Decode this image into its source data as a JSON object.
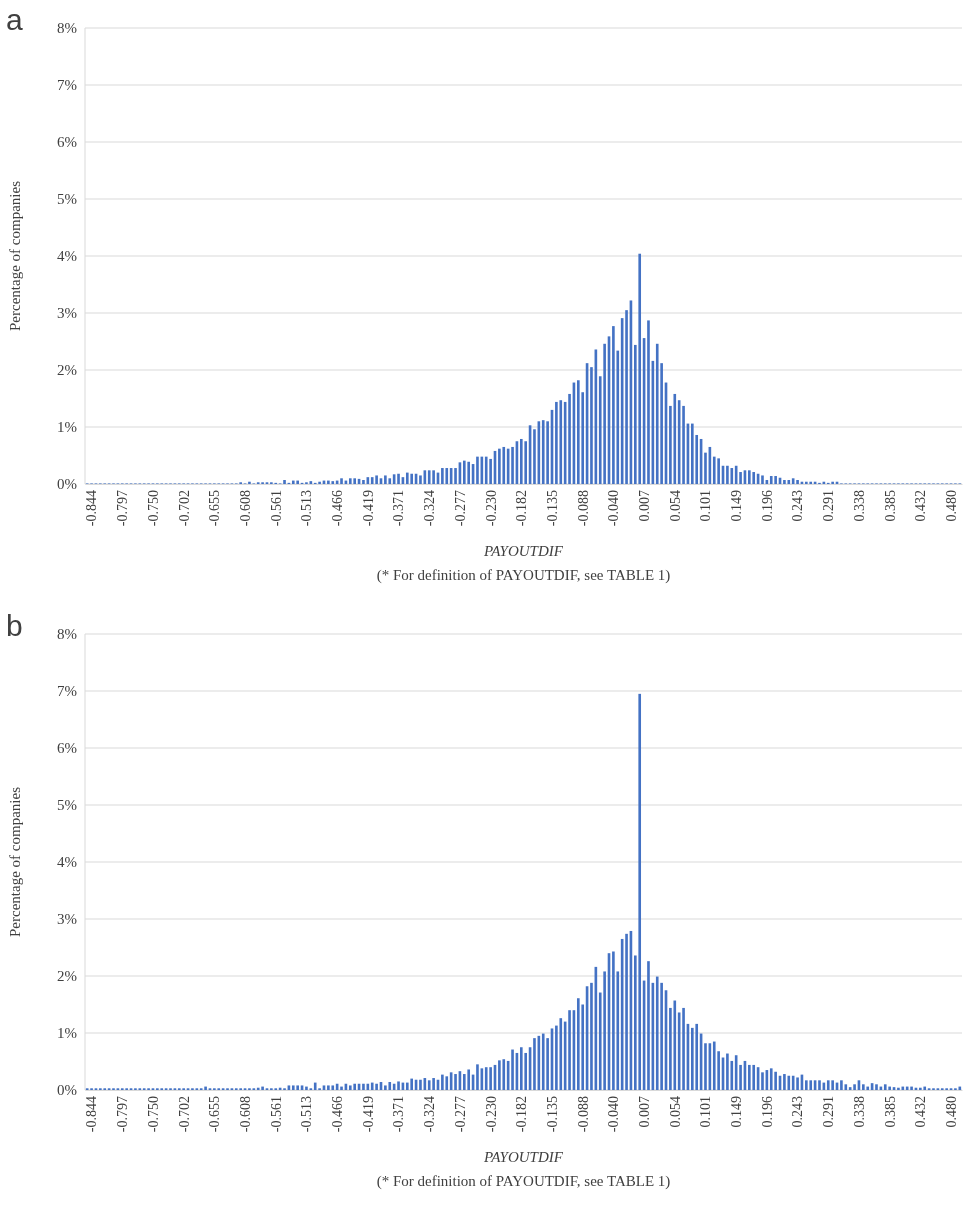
{
  "chart_data": [
    {
      "type": "bar",
      "title": "a",
      "xlabel": "PAYOUTDIF",
      "ylabel": "Percentage of companies",
      "annotations": [
        "(* For definition of PAYOUTDIF, see TABLE 1)"
      ],
      "color": "#4472c4",
      "grid": "y",
      "ylim": [
        0,
        8
      ],
      "yticks": [
        {
          "value": 0,
          "label": "0%"
        },
        {
          "value": 1,
          "label": "1%"
        },
        {
          "value": 2,
          "label": "2%"
        },
        {
          "value": 3,
          "label": "3%"
        },
        {
          "value": 4,
          "label": "4%"
        },
        {
          "value": 5,
          "label": "5%"
        },
        {
          "value": 6,
          "label": "6%"
        },
        {
          "value": 7,
          "label": "7%"
        },
        {
          "value": 8,
          "label": "8%"
        }
      ],
      "categories": [
        null,
        "-0.844",
        null,
        null,
        null,
        null,
        null,
        null,
        "-0.797",
        null,
        null,
        null,
        null,
        null,
        null,
        "-0.750",
        null,
        null,
        null,
        null,
        null,
        null,
        "-0.702",
        null,
        null,
        null,
        null,
        null,
        null,
        "-0.655",
        null,
        null,
        null,
        null,
        null,
        null,
        "-0.608",
        null,
        null,
        null,
        null,
        null,
        null,
        "-0.561",
        null,
        null,
        null,
        null,
        null,
        null,
        "-0.513",
        null,
        null,
        null,
        null,
        null,
        null,
        "-0.466",
        null,
        null,
        null,
        null,
        null,
        null,
        "-0.419",
        null,
        null,
        null,
        null,
        null,
        null,
        "-0.371",
        null,
        null,
        null,
        null,
        null,
        null,
        "-0.324",
        null,
        null,
        null,
        null,
        null,
        null,
        "-0.277",
        null,
        null,
        null,
        null,
        null,
        null,
        "-0.230",
        null,
        null,
        null,
        null,
        null,
        null,
        "-0.182",
        null,
        null,
        null,
        null,
        null,
        null,
        "-0.135",
        null,
        null,
        null,
        null,
        null,
        null,
        "-0.088",
        null,
        null,
        null,
        null,
        null,
        null,
        "-0.040",
        null,
        null,
        null,
        null,
        null,
        null,
        "0.007",
        null,
        null,
        null,
        null,
        null,
        null,
        "0.054",
        null,
        null,
        null,
        null,
        null,
        null,
        "0.101",
        null,
        null,
        null,
        null,
        null,
        null,
        "0.149",
        null,
        null,
        null,
        null,
        null,
        null,
        "0.196",
        null,
        null,
        null,
        null,
        null,
        null,
        "0.243",
        null,
        null,
        null,
        null,
        null,
        null,
        "0.291",
        null,
        null,
        null,
        null,
        null,
        null,
        "0.338",
        null,
        null,
        null,
        null,
        null,
        null,
        "0.385",
        null,
        null,
        null,
        null,
        null,
        null,
        "0.432",
        null,
        null,
        null,
        null,
        null,
        null,
        "0.480",
        null,
        null
      ],
      "values": [
        0.01,
        0.01,
        0.01,
        0.01,
        0.01,
        0.01,
        0.01,
        0.01,
        0.01,
        0.01,
        0.01,
        0.01,
        0.01,
        0.01,
        0.01,
        0.01,
        0.01,
        0.01,
        0.01,
        0.01,
        0.01,
        0.01,
        0.01,
        0.01,
        0.01,
        0.01,
        0.01,
        0.01,
        0.01,
        0.01,
        0.01,
        0.01,
        0.01,
        0.01,
        0.01,
        0.03,
        0.01,
        0.04,
        0.01,
        0.03,
        0.03,
        0.03,
        0.03,
        0.02,
        0.01,
        0.07,
        0.02,
        0.06,
        0.06,
        0.02,
        0.03,
        0.05,
        0.02,
        0.04,
        0.06,
        0.06,
        0.05,
        0.06,
        0.1,
        0.06,
        0.1,
        0.1,
        0.09,
        0.07,
        0.12,
        0.12,
        0.15,
        0.1,
        0.15,
        0.1,
        0.17,
        0.18,
        0.12,
        0.2,
        0.18,
        0.18,
        0.15,
        0.24,
        0.24,
        0.24,
        0.2,
        0.28,
        0.28,
        0.28,
        0.28,
        0.38,
        0.41,
        0.39,
        0.35,
        0.48,
        0.48,
        0.48,
        0.44,
        0.58,
        0.62,
        0.65,
        0.62,
        0.65,
        0.75,
        0.79,
        0.75,
        1.03,
        0.96,
        1.1,
        1.12,
        1.1,
        1.3,
        1.44,
        1.47,
        1.44,
        1.58,
        1.78,
        1.82,
        1.61,
        2.12,
        2.05,
        2.36,
        1.89,
        2.46,
        2.59,
        2.77,
        2.34,
        2.91,
        3.05,
        3.22,
        2.44,
        4.04,
        2.56,
        2.87,
        2.16,
        2.46,
        2.12,
        1.78,
        1.37,
        1.58,
        1.47,
        1.37,
        1.06,
        1.06,
        0.86,
        0.79,
        0.55,
        0.65,
        0.48,
        0.45,
        0.32,
        0.32,
        0.28,
        0.32,
        0.21,
        0.24,
        0.24,
        0.21,
        0.18,
        0.15,
        0.07,
        0.14,
        0.14,
        0.11,
        0.07,
        0.07,
        0.1,
        0.07,
        0.04,
        0.04,
        0.04,
        0.04,
        0.02,
        0.04,
        0.02,
        0.04,
        0.04,
        0.01,
        0.01,
        0.01,
        0.01,
        0.01,
        0.01,
        0.01,
        0.01,
        0.01,
        0.01,
        0.01,
        0.01,
        0.01,
        0.01,
        0.01,
        0.01,
        0.01,
        0.01,
        0.01,
        0.01,
        0.01,
        0.01,
        0.01,
        0.01,
        0.01,
        0.01,
        0.01,
        0.01
      ]
    },
    {
      "type": "bar",
      "title": "b",
      "xlabel": "PAYOUTDIF",
      "ylabel": "Percentage of companies",
      "annotations": [
        "(* For definition of PAYOUTDIF, see TABLE 1)"
      ],
      "color": "#4472c4",
      "grid": "y",
      "ylim": [
        0,
        8
      ],
      "yticks": [
        {
          "value": 0,
          "label": "0%"
        },
        {
          "value": 1,
          "label": "1%"
        },
        {
          "value": 2,
          "label": "2%"
        },
        {
          "value": 3,
          "label": "3%"
        },
        {
          "value": 4,
          "label": "4%"
        },
        {
          "value": 5,
          "label": "5%"
        },
        {
          "value": 6,
          "label": "6%"
        },
        {
          "value": 7,
          "label": "7%"
        },
        {
          "value": 8,
          "label": "8%"
        }
      ],
      "categories": [
        null,
        "-0.844",
        null,
        null,
        null,
        null,
        null,
        null,
        "-0.797",
        null,
        null,
        null,
        null,
        null,
        null,
        "-0.750",
        null,
        null,
        null,
        null,
        null,
        null,
        "-0.702",
        null,
        null,
        null,
        null,
        null,
        null,
        "-0.655",
        null,
        null,
        null,
        null,
        null,
        null,
        "-0.608",
        null,
        null,
        null,
        null,
        null,
        null,
        "-0.561",
        null,
        null,
        null,
        null,
        null,
        null,
        "-0.513",
        null,
        null,
        null,
        null,
        null,
        null,
        "-0.466",
        null,
        null,
        null,
        null,
        null,
        null,
        "-0.419",
        null,
        null,
        null,
        null,
        null,
        null,
        "-0.371",
        null,
        null,
        null,
        null,
        null,
        null,
        "-0.324",
        null,
        null,
        null,
        null,
        null,
        null,
        "-0.277",
        null,
        null,
        null,
        null,
        null,
        null,
        "-0.230",
        null,
        null,
        null,
        null,
        null,
        null,
        "-0.182",
        null,
        null,
        null,
        null,
        null,
        null,
        "-0.135",
        null,
        null,
        null,
        null,
        null,
        null,
        "-0.088",
        null,
        null,
        null,
        null,
        null,
        null,
        "-0.040",
        null,
        null,
        null,
        null,
        null,
        null,
        "0.007",
        null,
        null,
        null,
        null,
        null,
        null,
        "0.054",
        null,
        null,
        null,
        null,
        null,
        null,
        "0.101",
        null,
        null,
        null,
        null,
        null,
        null,
        "0.149",
        null,
        null,
        null,
        null,
        null,
        null,
        "0.196",
        null,
        null,
        null,
        null,
        null,
        null,
        "0.243",
        null,
        null,
        null,
        null,
        null,
        null,
        "0.291",
        null,
        null,
        null,
        null,
        null,
        null,
        "0.338",
        null,
        null,
        null,
        null,
        null,
        null,
        "0.385",
        null,
        null,
        null,
        null,
        null,
        null,
        "0.432",
        null,
        null,
        null,
        null,
        null,
        null,
        "0.480",
        null,
        null
      ],
      "values": [
        0.03,
        0.03,
        0.03,
        0.03,
        0.03,
        0.03,
        0.03,
        0.03,
        0.03,
        0.03,
        0.03,
        0.03,
        0.03,
        0.03,
        0.03,
        0.03,
        0.03,
        0.03,
        0.03,
        0.03,
        0.03,
        0.03,
        0.03,
        0.03,
        0.03,
        0.03,
        0.03,
        0.06,
        0.03,
        0.03,
        0.03,
        0.03,
        0.03,
        0.03,
        0.03,
        0.03,
        0.03,
        0.03,
        0.03,
        0.04,
        0.06,
        0.03,
        0.03,
        0.03,
        0.04,
        0.03,
        0.08,
        0.08,
        0.08,
        0.08,
        0.06,
        0.03,
        0.13,
        0.03,
        0.08,
        0.08,
        0.08,
        0.11,
        0.06,
        0.11,
        0.08,
        0.11,
        0.11,
        0.11,
        0.11,
        0.13,
        0.11,
        0.14,
        0.08,
        0.14,
        0.11,
        0.15,
        0.13,
        0.13,
        0.2,
        0.18,
        0.18,
        0.21,
        0.17,
        0.21,
        0.18,
        0.27,
        0.24,
        0.31,
        0.28,
        0.33,
        0.28,
        0.36,
        0.27,
        0.45,
        0.38,
        0.4,
        0.4,
        0.44,
        0.52,
        0.54,
        0.51,
        0.71,
        0.65,
        0.75,
        0.65,
        0.75,
        0.91,
        0.95,
        0.99,
        0.91,
        1.08,
        1.13,
        1.26,
        1.2,
        1.4,
        1.4,
        1.61,
        1.5,
        1.82,
        1.88,
        2.16,
        1.71,
        2.08,
        2.4,
        2.43,
        2.08,
        2.65,
        2.74,
        2.79,
        2.36,
        6.95,
        1.92,
        2.26,
        1.88,
        1.99,
        1.88,
        1.75,
        1.44,
        1.57,
        1.36,
        1.44,
        1.16,
        1.09,
        1.16,
        0.99,
        0.82,
        0.82,
        0.85,
        0.68,
        0.57,
        0.64,
        0.51,
        0.61,
        0.44,
        0.51,
        0.44,
        0.44,
        0.4,
        0.31,
        0.35,
        0.38,
        0.32,
        0.25,
        0.28,
        0.25,
        0.25,
        0.22,
        0.27,
        0.17,
        0.17,
        0.17,
        0.17,
        0.13,
        0.17,
        0.17,
        0.13,
        0.17,
        0.1,
        0.05,
        0.1,
        0.17,
        0.1,
        0.06,
        0.12,
        0.1,
        0.06,
        0.1,
        0.06,
        0.05,
        0.04,
        0.06,
        0.06,
        0.06,
        0.04,
        0.04,
        0.06,
        0.03,
        0.03,
        0.03,
        0.03,
        0.03,
        0.03,
        0.03,
        0.06
      ]
    }
  ]
}
